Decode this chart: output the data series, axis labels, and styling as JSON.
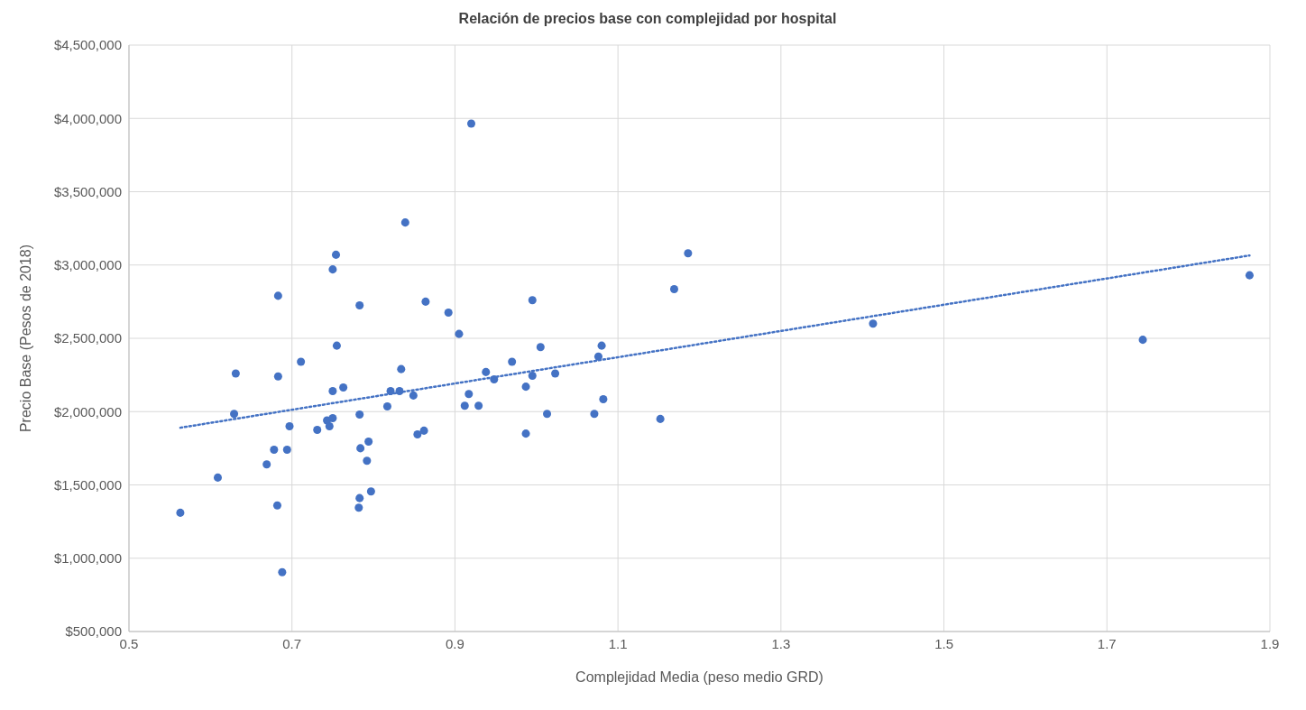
{
  "chart_data": {
    "type": "scatter",
    "title": "Relación de precios base con complejidad por hospital",
    "xlabel": "Complejidad Media (peso medio GRD)",
    "ylabel": "Precio Base (Pesos de 2018)",
    "xlim": [
      0.5,
      1.9
    ],
    "xticks": [
      0.5,
      0.7,
      0.9,
      1.1,
      1.3,
      1.5,
      1.7,
      1.9
    ],
    "ylim": [
      500000,
      4500000
    ],
    "yticks": [
      {
        "value": 500000,
        "label": "$500,000"
      },
      {
        "value": 1000000,
        "label": "$1,000,000"
      },
      {
        "value": 1500000,
        "label": "$1,500,000"
      },
      {
        "value": 2000000,
        "label": "$2,000,000"
      },
      {
        "value": 2500000,
        "label": "$2,500,000"
      },
      {
        "value": 3000000,
        "label": "$3,000,000"
      },
      {
        "value": 3500000,
        "label": "$3,500,000"
      },
      {
        "value": 4000000,
        "label": "$4,000,000"
      },
      {
        "value": 4500000,
        "label": "$4,500,000"
      }
    ],
    "grid": true,
    "legend": false,
    "marker": "circle",
    "series": [
      {
        "color": "#4472c4",
        "x": [
          0.563,
          0.609,
          0.631,
          0.629,
          0.669,
          0.678,
          0.694,
          0.697,
          0.683,
          0.683,
          0.682,
          0.688,
          0.711,
          0.731,
          0.743,
          0.746,
          0.75,
          0.754,
          0.755,
          0.75,
          0.75,
          0.763,
          0.783,
          0.783,
          0.784,
          0.792,
          0.794,
          0.783,
          0.782,
          0.797,
          0.817,
          0.821,
          0.832,
          0.834,
          0.839,
          0.849,
          0.854,
          0.862,
          0.864,
          0.892,
          0.905,
          0.912,
          0.917,
          0.92,
          0.929,
          0.938,
          0.948,
          0.97,
          0.987,
          0.987,
          0.995,
          0.995,
          1.005,
          1.013,
          1.023,
          1.071,
          1.076,
          1.08,
          1.082,
          1.152,
          1.169,
          1.186,
          1.413,
          1.744,
          1.875
        ],
        "values": [
          1310000,
          1550000,
          2260000,
          1985000,
          1640000,
          1740000,
          1740000,
          1900000,
          2790000,
          2240000,
          1360000,
          905000,
          2340000,
          1875000,
          1940000,
          1900000,
          2970000,
          3070000,
          2450000,
          2140000,
          1955000,
          2165000,
          2725000,
          1980000,
          1750000,
          1665000,
          1795000,
          1410000,
          1345000,
          1455000,
          2035000,
          2140000,
          2140000,
          2290000,
          3290000,
          2110000,
          1845000,
          1870000,
          2750000,
          2675000,
          2530000,
          2040000,
          2120000,
          3965000,
          2040000,
          2270000,
          2220000,
          2340000,
          1850000,
          2170000,
          2760000,
          2245000,
          2440000,
          1985000,
          2260000,
          1985000,
          2375000,
          2450000,
          2085000,
          1950000,
          2835000,
          3080000,
          2600000,
          2490000,
          2930000
        ]
      },
      {
        "type": "line",
        "color": "#4472c4",
        "line_style": "dotted",
        "marker": "none",
        "x": [
          0.563,
          1.875
        ],
        "values": [
          1890000,
          3065000
        ]
      }
    ]
  }
}
